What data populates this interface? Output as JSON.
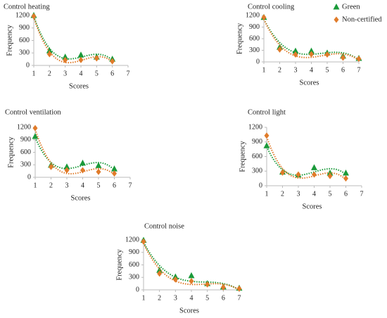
{
  "chart_data": [
    {
      "type": "scatter",
      "title": "Control heating",
      "xlabel": "Scores",
      "ylabel": "Frequency",
      "x": [
        1,
        2,
        3,
        4,
        5,
        6
      ],
      "xlim": [
        1,
        7
      ],
      "xticks": [
        1,
        2,
        3,
        4,
        5,
        6,
        7
      ],
      "ylim": [
        0,
        1200
      ],
      "yticks": [
        0,
        300,
        600,
        900,
        1200
      ],
      "series": [
        {
          "color": "#1a9a3a",
          "marker": "triangle",
          "values": [
            1200,
            350,
            200,
            250,
            200,
            150
          ]
        },
        {
          "color": "#e07b2a",
          "marker": "diamond",
          "values": [
            1180,
            270,
            130,
            130,
            170,
            100
          ]
        }
      ]
    },
    {
      "type": "scatter",
      "title": "Control cooling",
      "xlabel": "Scores",
      "ylabel": "Frequency",
      "x": [
        1,
        2,
        3,
        4,
        5,
        6,
        7
      ],
      "xlim": [
        1,
        7
      ],
      "xticks": [
        1,
        2,
        3,
        4,
        5,
        6,
        7
      ],
      "ylim": [
        0,
        1200
      ],
      "yticks": [
        0,
        300,
        600,
        900,
        1200
      ],
      "series": [
        {
          "name": "Green",
          "color": "#1a9a3a",
          "marker": "triangle",
          "values": [
            1150,
            380,
            280,
            280,
            230,
            150,
            90
          ]
        },
        {
          "name": "Non-certified",
          "color": "#e07b2a",
          "marker": "diamond",
          "values": [
            1150,
            320,
            190,
            200,
            190,
            110,
            80
          ]
        }
      ]
    },
    {
      "type": "scatter",
      "title": "Control ventilation",
      "xlabel": "Scores",
      "ylabel": "Frequency",
      "x": [
        1,
        2,
        3,
        4,
        5,
        6
      ],
      "xlim": [
        1,
        7
      ],
      "xticks": [
        1,
        2,
        3,
        4,
        5,
        6,
        7
      ],
      "ylim": [
        0,
        1200
      ],
      "yticks": [
        0,
        300,
        600,
        900,
        1200
      ],
      "series": [
        {
          "color": "#1a9a3a",
          "marker": "triangle",
          "values": [
            980,
            290,
            250,
            340,
            280,
            200
          ]
        },
        {
          "color": "#e07b2a",
          "marker": "diamond",
          "values": [
            1180,
            250,
            170,
            170,
            130,
            90
          ]
        }
      ]
    },
    {
      "type": "scatter",
      "title": "Control light",
      "xlabel": "Scores",
      "ylabel": "Frequency",
      "x": [
        1,
        2,
        3,
        4,
        5,
        6
      ],
      "xlim": [
        1,
        7
      ],
      "xticks": [
        1,
        2,
        3,
        4,
        5,
        6,
        7
      ],
      "ylim": [
        0,
        1200
      ],
      "yticks": [
        0,
        300,
        600,
        900,
        1200
      ],
      "series": [
        {
          "color": "#1a9a3a",
          "marker": "triangle",
          "values": [
            820,
            280,
            220,
            370,
            260,
            260
          ]
        },
        {
          "color": "#e07b2a",
          "marker": "diamond",
          "values": [
            1030,
            270,
            230,
            230,
            200,
            150
          ]
        }
      ]
    },
    {
      "type": "scatter",
      "title": "Control noise",
      "xlabel": "Scores",
      "ylabel": "Frequency",
      "x": [
        1,
        2,
        3,
        4,
        5,
        6,
        7
      ],
      "xlim": [
        1,
        7
      ],
      "xticks": [
        1,
        2,
        3,
        4,
        5,
        6,
        7
      ],
      "ylim": [
        0,
        1200
      ],
      "yticks": [
        0,
        300,
        600,
        900,
        1200
      ],
      "series": [
        {
          "color": "#1a9a3a",
          "marker": "triangle",
          "values": [
            1190,
            470,
            310,
            340,
            150,
            70,
            40
          ]
        },
        {
          "color": "#e07b2a",
          "marker": "diamond",
          "values": [
            1160,
            390,
            250,
            210,
            130,
            60,
            30
          ]
        }
      ]
    }
  ]
}
